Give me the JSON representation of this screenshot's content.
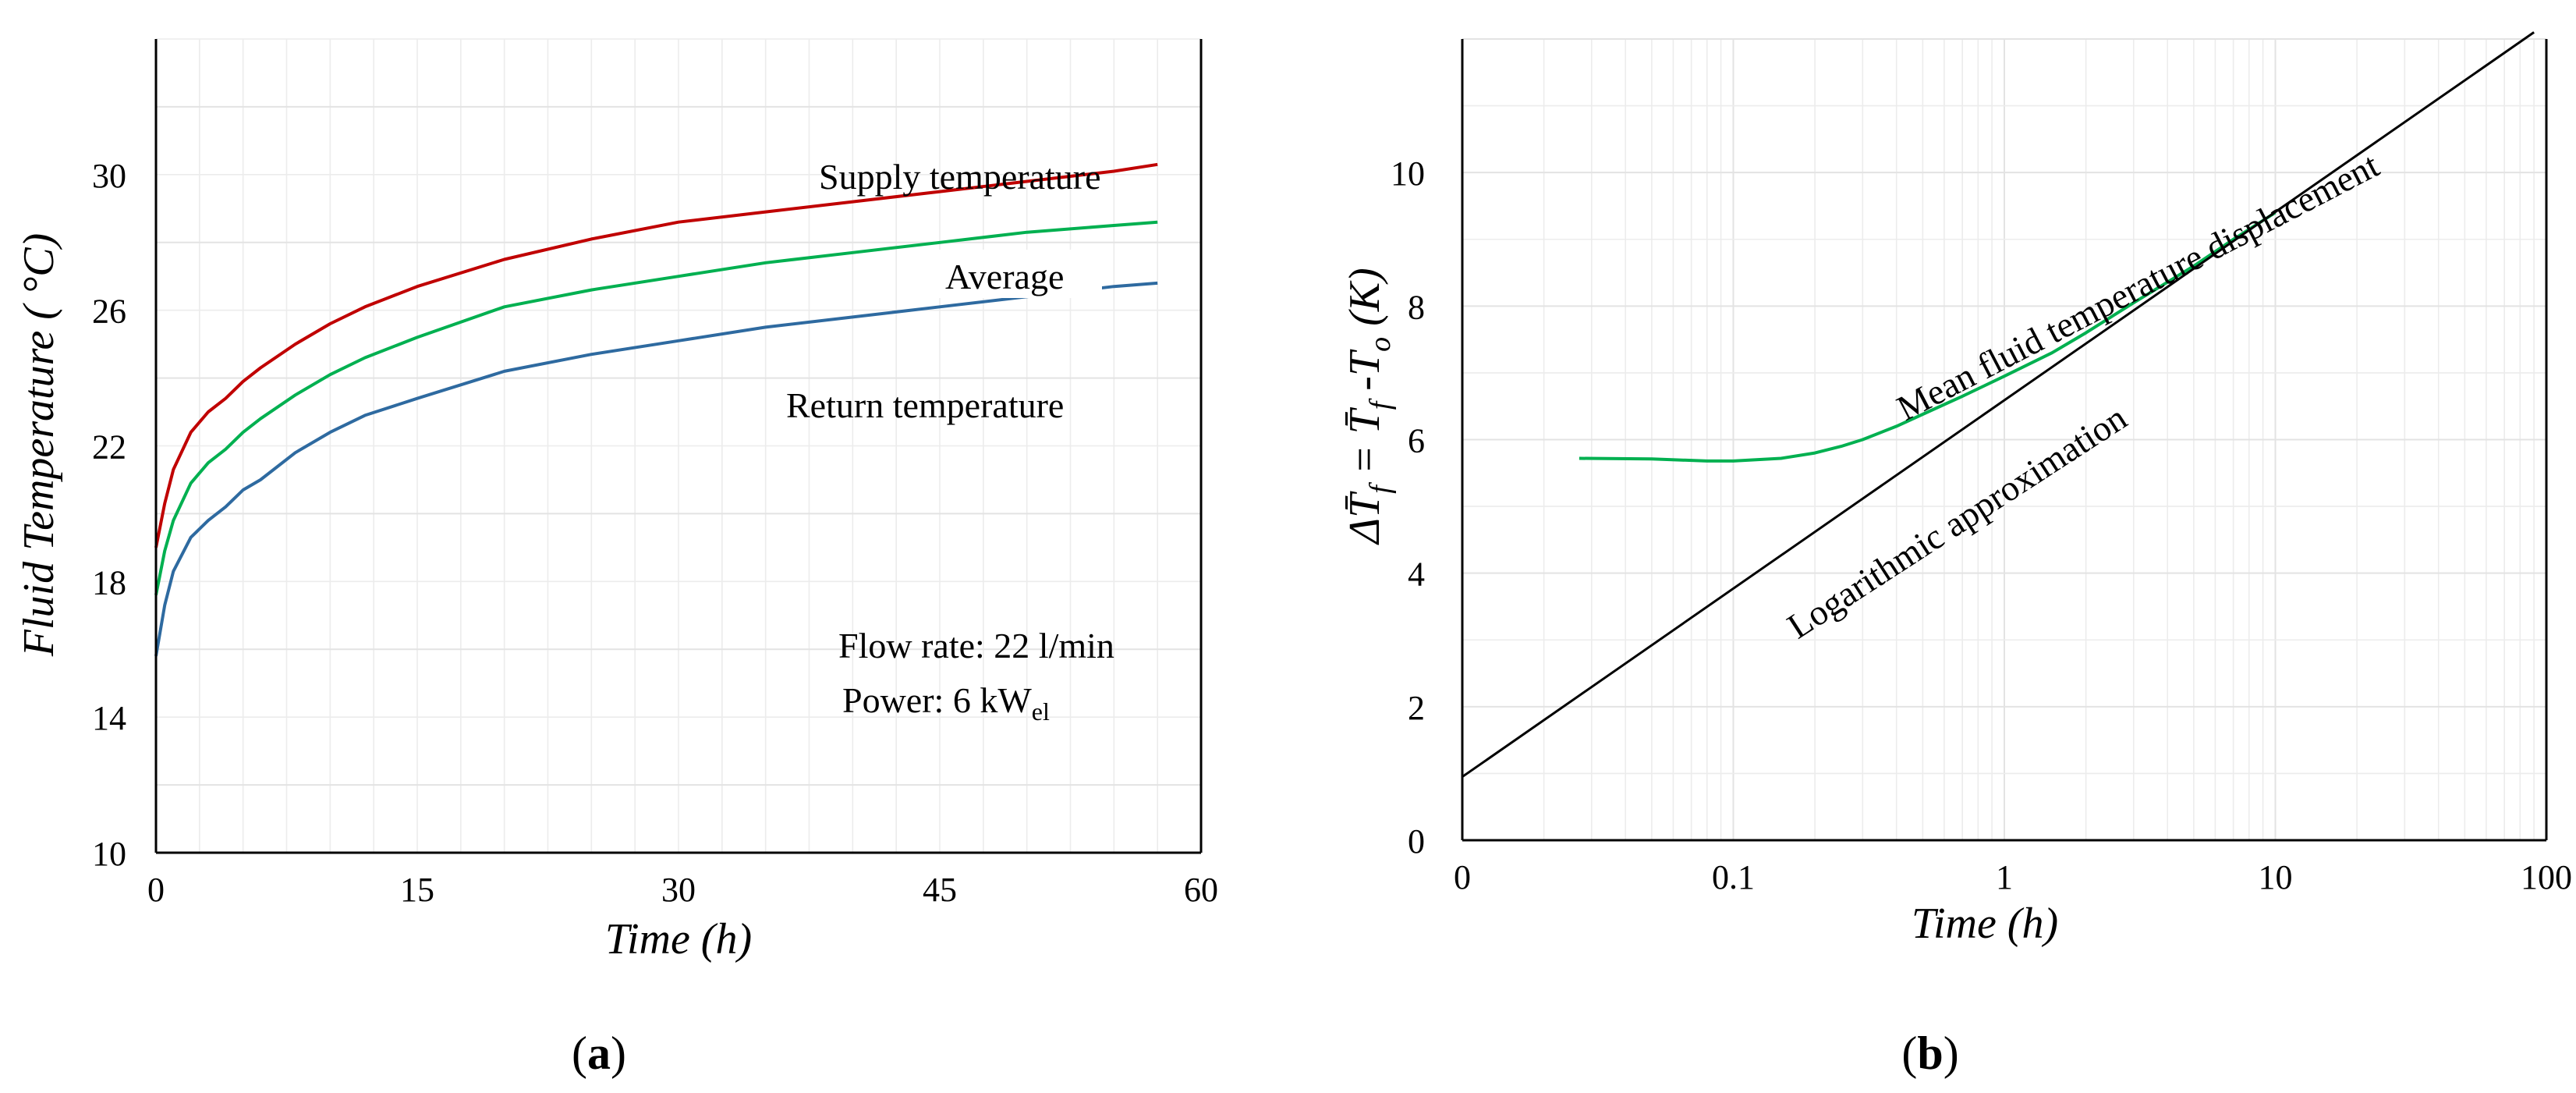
{
  "chart_data": [
    {
      "id": "a",
      "type": "line",
      "panel_label": "(a)",
      "panel_letter": "a",
      "xlabel": "Time (h)",
      "ylabel": "Fluid Temperature ( °C)",
      "xlim": [
        0,
        60
      ],
      "ylim": [
        10,
        34
      ],
      "xticks": [
        0,
        15,
        30,
        45,
        60
      ],
      "yticks": [
        10,
        14,
        18,
        22,
        26,
        30
      ],
      "series": [
        {
          "name": "Supply temperature",
          "color": "#c00000",
          "x": [
            0,
            0.5,
            1,
            2,
            3,
            4,
            5,
            6,
            8,
            10,
            12,
            15,
            20,
            25,
            30,
            35,
            40,
            45,
            50,
            55,
            57.5
          ],
          "y": [
            19.0,
            20.3,
            21.3,
            22.4,
            23.0,
            23.4,
            23.9,
            24.3,
            25.0,
            25.6,
            26.1,
            26.7,
            27.5,
            28.1,
            28.6,
            28.9,
            29.2,
            29.5,
            29.8,
            30.1,
            30.3
          ]
        },
        {
          "name": "Average",
          "color": "#00b050",
          "x": [
            0,
            0.5,
            1,
            2,
            3,
            4,
            5,
            6,
            8,
            10,
            12,
            15,
            20,
            25,
            30,
            35,
            40,
            45,
            50,
            55,
            57.5
          ],
          "y": [
            17.6,
            18.9,
            19.8,
            20.9,
            21.5,
            21.9,
            22.4,
            22.8,
            23.5,
            24.1,
            24.6,
            25.2,
            26.1,
            26.6,
            27.0,
            27.4,
            27.7,
            28.0,
            28.3,
            28.5,
            28.6
          ]
        },
        {
          "name": "Return temperature",
          "color": "#2e6aa0",
          "x": [
            0,
            0.5,
            1,
            2,
            3,
            4,
            5,
            6,
            8,
            10,
            12,
            15,
            20,
            25,
            30,
            35,
            40,
            45,
            50,
            55,
            57.5
          ],
          "y": [
            15.8,
            17.3,
            18.3,
            19.3,
            19.8,
            20.2,
            20.7,
            21.0,
            21.8,
            22.4,
            22.9,
            23.4,
            24.2,
            24.7,
            25.1,
            25.5,
            25.8,
            26.1,
            26.4,
            26.7,
            26.8
          ]
        }
      ],
      "annotations": {
        "supply": "Supply temperature",
        "average": "Average",
        "return": "Return temperature",
        "flow": "Flow rate: 22 l/min",
        "power_prefix": "Power: 6 kW",
        "power_sub": "el"
      }
    },
    {
      "id": "b",
      "type": "line",
      "panel_label": "(b)",
      "panel_letter": "b",
      "xscale": "log",
      "xlabel": "Time (h)",
      "ylabel": "ΔT̄f = T̄f - To (K)",
      "xlim": [
        0.01,
        100
      ],
      "ylim": [
        0,
        12
      ],
      "xticks": [
        0.01,
        0.1,
        1,
        10,
        100
      ],
      "xtick_labels": [
        "0",
        "0.1",
        "1",
        "10",
        "100"
      ],
      "yticks": [
        0,
        2,
        4,
        6,
        8,
        10
      ],
      "series": [
        {
          "name": "Mean fluid temperature displacement",
          "color": "#00b050",
          "x": [
            0.027,
            0.05,
            0.08,
            0.1,
            0.15,
            0.2,
            0.25,
            0.3,
            0.4,
            0.5,
            0.7,
            1,
            1.5,
            2,
            3,
            5,
            7,
            10
          ],
          "y": [
            5.72,
            5.71,
            5.68,
            5.68,
            5.72,
            5.8,
            5.9,
            6.0,
            6.2,
            6.38,
            6.65,
            6.95,
            7.3,
            7.6,
            8.05,
            8.6,
            9.0,
            9.4
          ]
        },
        {
          "name": "Logarithmic approximation",
          "color": "#000000",
          "x": [
            0.01,
            90
          ],
          "y": [
            0.95,
            12.1
          ]
        }
      ],
      "annotations": {
        "mean": "Mean fluid temperature displacement",
        "log": "Logarithmic approximation"
      }
    }
  ]
}
